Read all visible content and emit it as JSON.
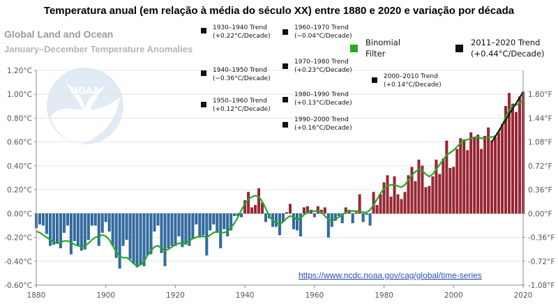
{
  "title": "Temperatura anual (em relação à média do século XX) entre 1880 e 2020 e variação por década",
  "subtitle_main": "Global Land and Ocean",
  "subtitle_sub": "January–December Temperature Anomalies",
  "logo_text": "NOAA",
  "source_url": "https://www.ncdc.noaa.gov/cag/global/time-series",
  "colors": {
    "positive_bar": "#a02433",
    "negative_bar": "#2f6da6",
    "binomial": "#22aa22",
    "trend": "#111111"
  },
  "legend": {
    "binomial": [
      "Binomial",
      "Filter"
    ],
    "trend_2011": [
      "2011–2020 Trend",
      "(+0.44°C/Decade)"
    ]
  },
  "trend_labels": [
    {
      "l1": "1930–1940 Trend",
      "l2": "(+0.22°C/Decade)"
    },
    {
      "l1": "1940–1950 Trend",
      "l2": "(−0.36°C/Decade)"
    },
    {
      "l1": "1950–1960 Trend",
      "l2": "(+0.12°C/Decade)"
    },
    {
      "l1": "1960–1970 Trend",
      "l2": "(−0.04°C/Decade)"
    },
    {
      "l1": "1970–1980 Trend",
      "l2": "(+0.23°C/Decade)"
    },
    {
      "l1": "1980–1990 Trend",
      "l2": "(+0.13°C/Decade)"
    },
    {
      "l1": "1990–2000 Trend",
      "l2": "(+0.16°C/Decade)"
    },
    {
      "l1": "2000–2010 Trend",
      "l2": "(+0.14°C/Decade)"
    }
  ],
  "chart_data": {
    "type": "bar",
    "ylim": [
      -0.6,
      1.2
    ],
    "xlim": [
      1880,
      2020
    ],
    "x_ticks": [
      1880,
      1900,
      1920,
      1940,
      1960,
      1980,
      2000,
      2020
    ],
    "y_ticks_left": [
      "-0.60°C",
      "-0.40°C",
      "-0.20°C",
      "0.00°C",
      "0.20°C",
      "0.40°C",
      "0.60°C",
      "0.80°C",
      "1.00°C",
      "1.20°C"
    ],
    "y_ticks_right": [
      "-1.08°F",
      "-0.72°F",
      "-0.36°F",
      "0.00°F",
      "0.36°F",
      "0.72°F",
      "1.08°F",
      "1.44°F",
      "1.80°F"
    ],
    "grid": true,
    "years": [
      1880,
      1881,
      1882,
      1883,
      1884,
      1885,
      1886,
      1887,
      1888,
      1889,
      1890,
      1891,
      1892,
      1893,
      1894,
      1895,
      1896,
      1897,
      1898,
      1899,
      1900,
      1901,
      1902,
      1903,
      1904,
      1905,
      1906,
      1907,
      1908,
      1909,
      1910,
      1911,
      1912,
      1913,
      1914,
      1915,
      1916,
      1917,
      1918,
      1919,
      1920,
      1921,
      1922,
      1923,
      1924,
      1925,
      1926,
      1927,
      1928,
      1929,
      1930,
      1931,
      1932,
      1933,
      1934,
      1935,
      1936,
      1937,
      1938,
      1939,
      1940,
      1941,
      1942,
      1943,
      1944,
      1945,
      1946,
      1947,
      1948,
      1949,
      1950,
      1951,
      1952,
      1953,
      1954,
      1955,
      1956,
      1957,
      1958,
      1959,
      1960,
      1961,
      1962,
      1963,
      1964,
      1965,
      1966,
      1967,
      1968,
      1969,
      1970,
      1971,
      1972,
      1973,
      1974,
      1975,
      1976,
      1977,
      1978,
      1979,
      1980,
      1981,
      1982,
      1983,
      1984,
      1985,
      1986,
      1987,
      1988,
      1989,
      1990,
      1991,
      1992,
      1993,
      1994,
      1995,
      1996,
      1997,
      1998,
      1999,
      2000,
      2001,
      2002,
      2003,
      2004,
      2005,
      2006,
      2007,
      2008,
      2009,
      2010,
      2011,
      2012,
      2013,
      2014,
      2015,
      2016,
      2017,
      2018,
      2019,
      2020
    ],
    "anomalies": [
      -0.12,
      -0.09,
      -0.1,
      -0.17,
      -0.27,
      -0.26,
      -0.25,
      -0.29,
      -0.16,
      -0.1,
      -0.34,
      -0.23,
      -0.27,
      -0.31,
      -0.3,
      -0.22,
      -0.1,
      -0.1,
      -0.27,
      -0.16,
      -0.07,
      -0.15,
      -0.27,
      -0.37,
      -0.46,
      -0.27,
      -0.22,
      -0.38,
      -0.42,
      -0.45,
      -0.43,
      -0.44,
      -0.35,
      -0.34,
      -0.15,
      -0.1,
      -0.33,
      -0.44,
      -0.29,
      -0.27,
      -0.27,
      -0.19,
      -0.28,
      -0.26,
      -0.27,
      -0.21,
      -0.09,
      -0.2,
      -0.18,
      -0.35,
      -0.14,
      -0.09,
      -0.16,
      -0.29,
      -0.13,
      -0.19,
      -0.14,
      -0.02,
      -0.02,
      -0.03,
      0.11,
      0.18,
      0.05,
      0.07,
      0.21,
      0.09,
      -0.07,
      -0.04,
      -0.11,
      -0.11,
      -0.18,
      -0.07,
      0.01,
      0.08,
      -0.13,
      -0.14,
      -0.19,
      0.05,
      0.06,
      0.03,
      -0.03,
      0.06,
      0.03,
      0.05,
      -0.2,
      -0.11,
      -0.06,
      -0.02,
      -0.08,
      0.05,
      0.03,
      -0.08,
      0.01,
      0.16,
      -0.07,
      -0.01,
      -0.1,
      0.18,
      0.07,
      0.16,
      0.26,
      0.32,
      0.14,
      0.31,
      0.16,
      0.12,
      0.18,
      0.32,
      0.39,
      0.27,
      0.45,
      0.4,
      0.22,
      0.23,
      0.31,
      0.45,
      0.33,
      0.46,
      0.61,
      0.38,
      0.39,
      0.54,
      0.63,
      0.62,
      0.53,
      0.68,
      0.64,
      0.66,
      0.54,
      0.65,
      0.72,
      0.61,
      0.64,
      0.68,
      0.75,
      0.9,
      1.01,
      0.92,
      0.85,
      0.98,
      1.02
    ],
    "binomial_filter": [
      -0.15,
      -0.16,
      -0.18,
      -0.2,
      -0.22,
      -0.24,
      -0.25,
      -0.24,
      -0.23,
      -0.23,
      -0.24,
      -0.26,
      -0.27,
      -0.28,
      -0.27,
      -0.25,
      -0.22,
      -0.2,
      -0.19,
      -0.18,
      -0.19,
      -0.22,
      -0.27,
      -0.32,
      -0.36,
      -0.37,
      -0.37,
      -0.39,
      -0.42,
      -0.44,
      -0.43,
      -0.4,
      -0.35,
      -0.31,
      -0.28,
      -0.27,
      -0.29,
      -0.31,
      -0.3,
      -0.28,
      -0.26,
      -0.25,
      -0.25,
      -0.24,
      -0.23,
      -0.21,
      -0.2,
      -0.19,
      -0.19,
      -0.2,
      -0.18,
      -0.16,
      -0.15,
      -0.16,
      -0.16,
      -0.15,
      -0.12,
      -0.08,
      -0.03,
      0.03,
      0.08,
      0.12,
      0.14,
      0.15,
      0.14,
      0.1,
      0.04,
      -0.02,
      -0.06,
      -0.08,
      -0.09,
      -0.07,
      -0.04,
      -0.02,
      -0.03,
      -0.05,
      -0.04,
      -0.01,
      0.01,
      0.02,
      0.02,
      0.02,
      0.01,
      -0.02,
      -0.05,
      -0.06,
      -0.05,
      -0.03,
      -0.01,
      0.01,
      0.02,
      0.02,
      0.02,
      0.02,
      0.01,
      0.01,
      0.03,
      0.07,
      0.12,
      0.17,
      0.21,
      0.23,
      0.24,
      0.24,
      0.23,
      0.22,
      0.24,
      0.28,
      0.32,
      0.35,
      0.37,
      0.36,
      0.33,
      0.31,
      0.33,
      0.37,
      0.41,
      0.45,
      0.49,
      0.51,
      0.53,
      0.56,
      0.59,
      0.61,
      0.62,
      0.63,
      0.64,
      0.64,
      0.63,
      0.63,
      0.64,
      0.64,
      0.65,
      0.68,
      0.74,
      0.81,
      0.87,
      0.9,
      0.91,
      0.93,
      0.95
    ],
    "trend_2011_2020": {
      "x": [
        2011,
        2020
      ],
      "y": [
        0.6,
        1.02
      ]
    }
  }
}
